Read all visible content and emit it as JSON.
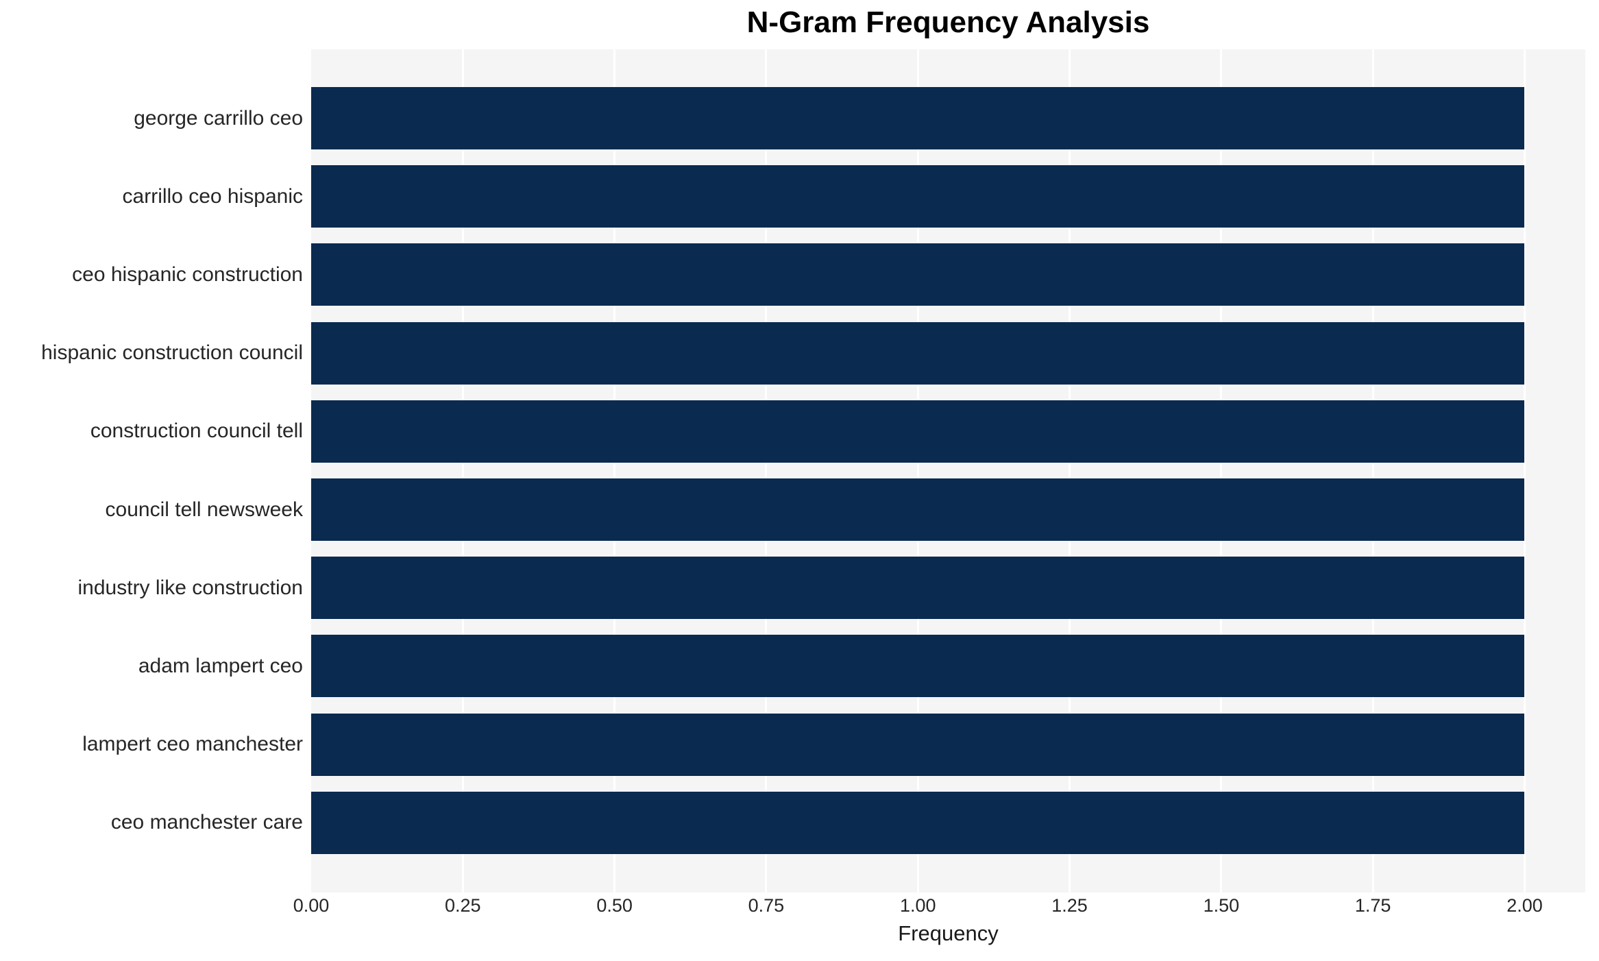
{
  "chart_data": {
    "type": "bar",
    "orientation": "horizontal",
    "title": "N-Gram Frequency Analysis",
    "xlabel": "Frequency",
    "ylabel": "",
    "categories": [
      "george carrillo ceo",
      "carrillo ceo hispanic",
      "ceo hispanic construction",
      "hispanic construction council",
      "construction council tell",
      "council tell newsweek",
      "industry like construction",
      "adam lampert ceo",
      "lampert ceo manchester",
      "ceo manchester care"
    ],
    "values": [
      2,
      2,
      2,
      2,
      2,
      2,
      2,
      2,
      2,
      2
    ],
    "x_axis": {
      "range": [
        0,
        2.1
      ],
      "tick_values": [
        0,
        0.25,
        0.5,
        0.75,
        1.0,
        1.25,
        1.5,
        1.75,
        2.0
      ],
      "tick_labels": [
        "0.00",
        "0.25",
        "0.50",
        "0.75",
        "1.00",
        "1.25",
        "1.50",
        "1.75",
        "2.00"
      ]
    },
    "grid": true,
    "legend_position": "none",
    "style": {
      "bar_color": "#0a2a50",
      "plot_background": "#f5f5f6",
      "grid_color": "#ffffff",
      "figure_background": "#ffffff",
      "title_color": "#000000",
      "tick_label_color": "#262626"
    }
  }
}
